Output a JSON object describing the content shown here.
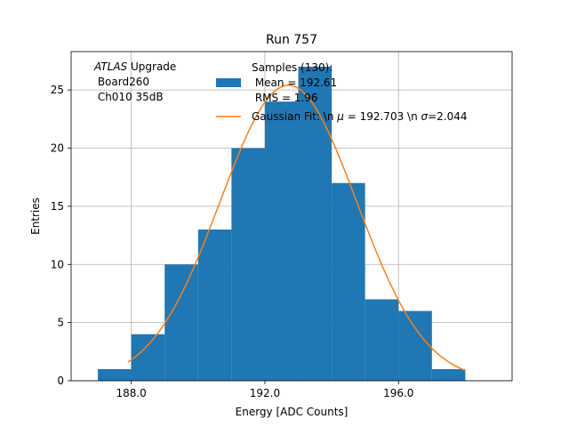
{
  "chart_data": {
    "type": "bar",
    "title": "Run 757",
    "xlabel": "Energy [ADC Counts]",
    "ylabel": "Entries",
    "xlim": [
      186.2,
      199.4
    ],
    "ylim": [
      0,
      28.3
    ],
    "grid": true,
    "xticks": [
      188.0,
      192.0,
      196.0
    ],
    "xtick_labels": [
      "188.0",
      "192.0",
      "196.0"
    ],
    "yticks": [
      0,
      5,
      10,
      15,
      20,
      25
    ],
    "ytick_labels": [
      "0",
      "5",
      "10",
      "15",
      "20",
      "25"
    ],
    "histogram": {
      "name": "Samples (130):",
      "bin_edges": [
        187.0,
        188.0,
        189.0,
        190.0,
        191.0,
        192.0,
        193.0,
        194.0,
        195.0,
        196.0,
        197.0,
        198.0
      ],
      "counts": [
        1,
        4,
        10,
        13,
        20,
        24,
        27,
        17,
        7,
        6,
        1
      ],
      "color": "#1f77b4"
    },
    "fit": {
      "name": "Gaussian Fit: \\n $\\mu$ = 192.703 \\n $\\sigma$=2.044",
      "mu": 192.703,
      "sigma": 2.044,
      "amplitude": 25.4,
      "x_range": [
        187.9,
        198.0
      ],
      "color": "#ff7f0e"
    },
    "legend": {
      "position": "top-right",
      "entries": [
        {
          "lines": [
            "Samples (130):",
            " Mean = 192.61",
            " RMS = 1.96"
          ],
          "marker": "patch",
          "color": "#1f77b4"
        },
        {
          "lines": [],
          "marker": "line",
          "color": "#ff7f0e"
        }
      ],
      "fit_prefix": "Gaussian Fit: \\n ",
      "mu_symbol": "μ",
      "mu_value": " = 192.703 \\n ",
      "sigma_symbol": "σ",
      "sigma_value": "=2.044"
    },
    "annotation": {
      "atlas": "ATLAS",
      "upgrade": " Upgrade",
      "board": " Board260",
      "channel": " Ch010 35dB"
    }
  }
}
